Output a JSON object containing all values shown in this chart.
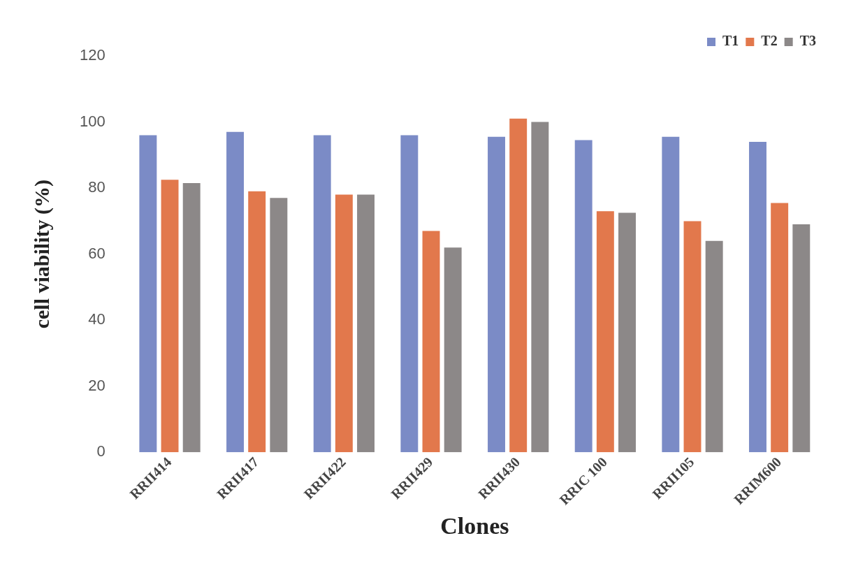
{
  "chart_data": {
    "type": "bar",
    "xlabel": "Clones",
    "ylabel": "cell viability (%)",
    "categories": [
      "RRII414",
      "RRII417",
      "RRII422",
      "RRII429",
      "RRII430",
      "RRIC 100",
      "RRII105",
      "RRIM600"
    ],
    "series": [
      {
        "name": "T1",
        "color": "#7b8bc6",
        "values": [
          96,
          97,
          96,
          96,
          95.5,
          94.5,
          95.5,
          94
        ]
      },
      {
        "name": "T2",
        "color": "#e2784c",
        "values": [
          82.5,
          79,
          78,
          67,
          101,
          73,
          70,
          75.5
        ]
      },
      {
        "name": "T3",
        "color": "#8c8888",
        "values": [
          81.5,
          77,
          78,
          62,
          100,
          72.5,
          64,
          69
        ]
      }
    ],
    "ylim": [
      0,
      120
    ],
    "yticks": [
      0,
      20,
      40,
      60,
      80,
      100,
      120
    ],
    "grid": false,
    "legend": "top right"
  }
}
